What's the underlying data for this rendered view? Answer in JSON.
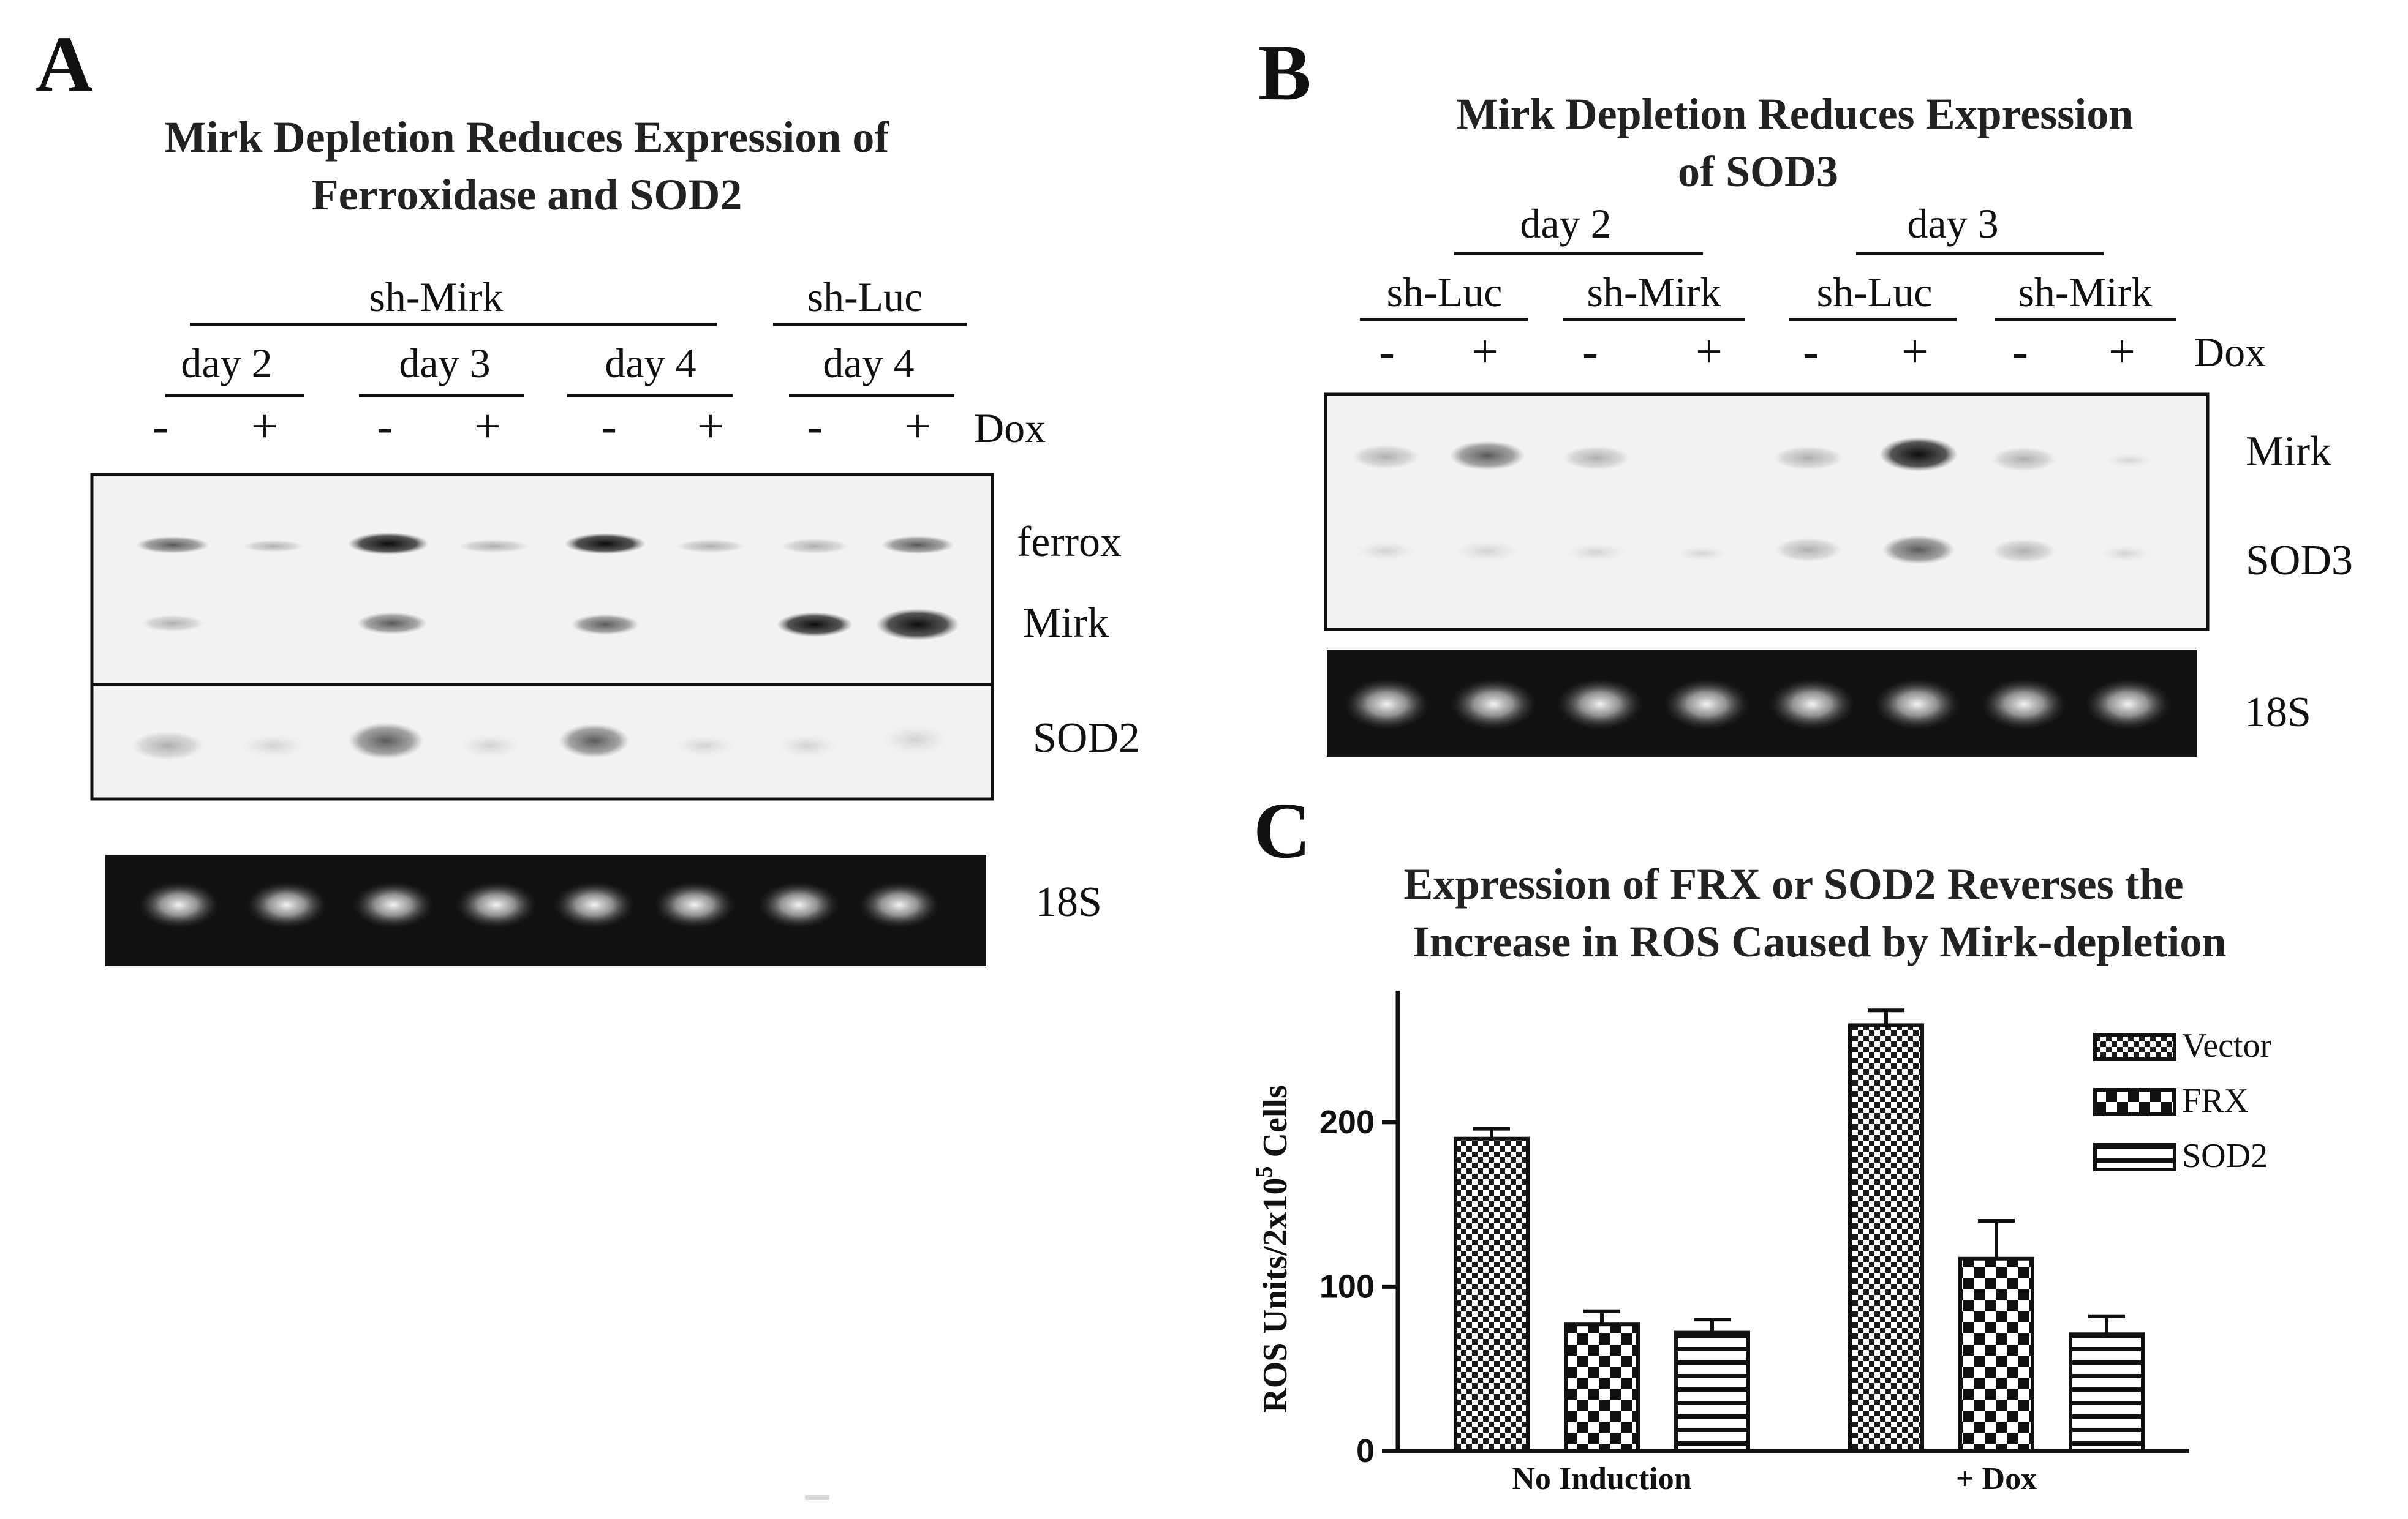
{
  "panel_a": {
    "letter": "A",
    "title_line1": "Mirk Depletion Reduces Expression of",
    "title_line2": "Ferroxidase and SOD2",
    "group_mirk": "sh-Mirk",
    "group_luc": "sh-Luc",
    "days": [
      "day 2",
      "day 3",
      "day 4",
      "day 4"
    ],
    "dox_signs": [
      "-",
      "+",
      "-",
      "+",
      "-",
      "+",
      "-",
      "+"
    ],
    "dox_label": "Dox",
    "rows": [
      "ferrox",
      "Mirk",
      "SOD2",
      "18S"
    ]
  },
  "panel_b": {
    "letter": "B",
    "title_line1": "Mirk Depletion Reduces Expression",
    "title_line2": "of SOD3",
    "days": [
      "day 2",
      "day 3"
    ],
    "groups": [
      "sh-Luc",
      "sh-Mirk",
      "sh-Luc",
      "sh-Mirk"
    ],
    "dox_signs": [
      "-",
      "+",
      "-",
      "+",
      "-",
      "+",
      "-",
      "+"
    ],
    "dox_label": "Dox",
    "rows": [
      "Mirk",
      "SOD3",
      "18S"
    ]
  },
  "panel_c": {
    "letter": "C",
    "title_line1": "Expression of FRX or SOD2 Reverses the",
    "title_line2": "Increase in ROS Caused by Mirk-depletion"
  },
  "chart_data": {
    "type": "bar",
    "title": "Expression of FRX or SOD2 Reverses the Increase in ROS Caused by Mirk-depletion",
    "ylabel_main": "ROS Units/2x10",
    "ylabel_sup": "5",
    "ylabel_end": " Cells",
    "categories": [
      "No Induction",
      "+ Dox"
    ],
    "ylim": [
      0,
      280
    ],
    "yticks": [
      0,
      100,
      200
    ],
    "legend_position": "top-right",
    "series": [
      {
        "name": "Vector",
        "values": [
          190,
          259
        ],
        "errors": [
          6,
          9
        ],
        "pattern": "checker-fine"
      },
      {
        "name": "FRX",
        "values": [
          77,
          117
        ],
        "errors": [
          8,
          23
        ],
        "pattern": "checker-coarse"
      },
      {
        "name": "SOD2",
        "values": [
          72,
          71
        ],
        "errors": [
          8,
          11
        ],
        "pattern": "stripes"
      }
    ]
  },
  "colors": {
    "ink": "#111111",
    "gel_background": "#f2f2f2",
    "gel_18s_background": "#121212"
  }
}
